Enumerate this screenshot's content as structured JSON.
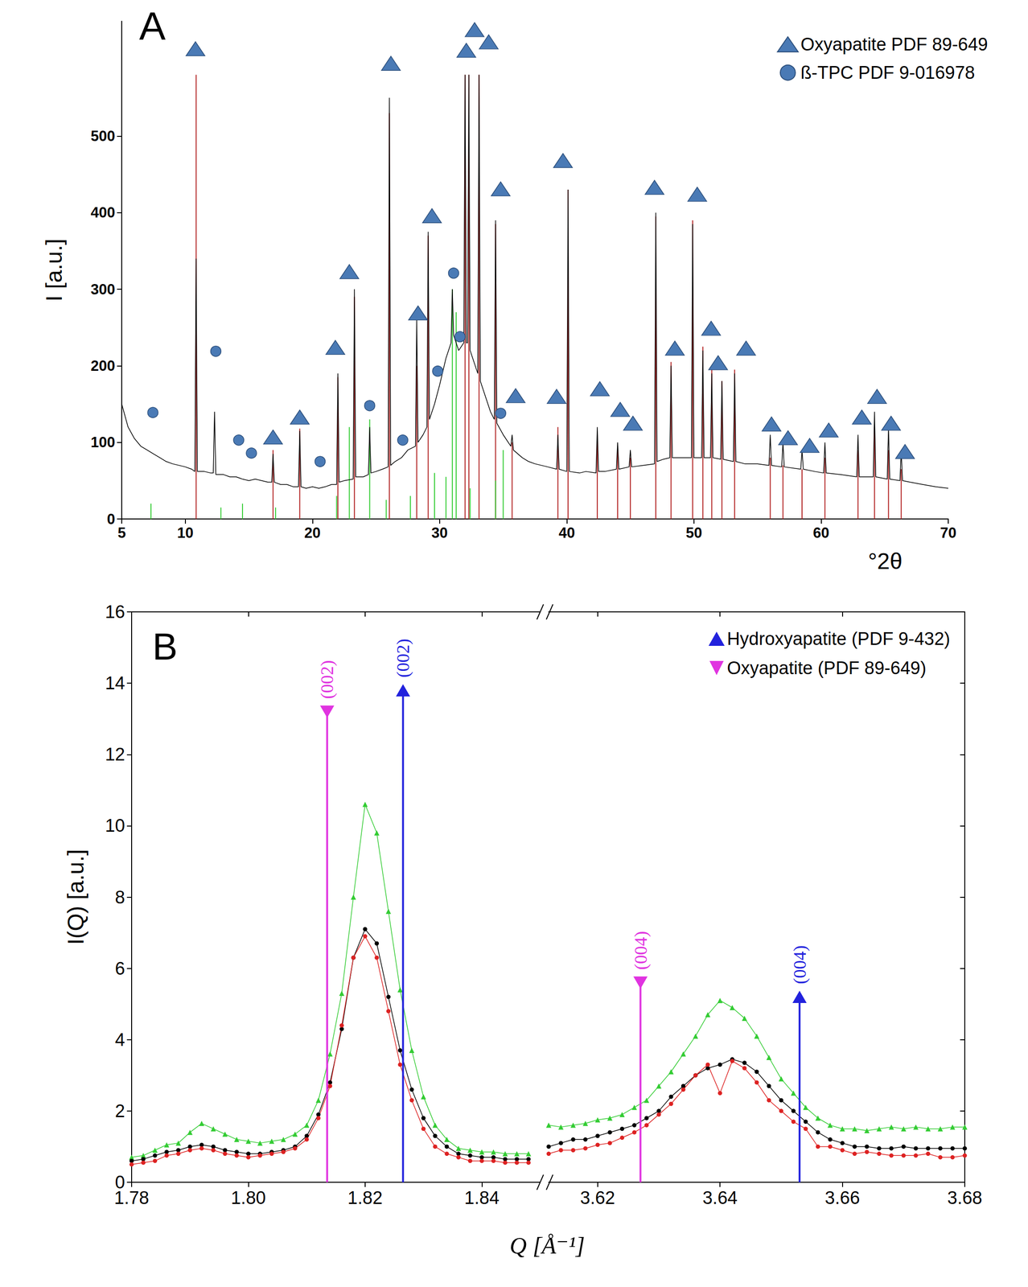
{
  "chart_data": [
    {
      "type": "line",
      "title": "A",
      "x_label": "°2θ",
      "y_label": "I [a.u.]",
      "xlim": [
        5,
        70
      ],
      "xticks": [
        5,
        10,
        20,
        30,
        40,
        50,
        60,
        70
      ],
      "ylim": [
        0,
        650
      ],
      "yticks": [
        0,
        100,
        200,
        300,
        400,
        500
      ],
      "grid": false,
      "legend": "top-right",
      "series": [
        {
          "type": "line",
          "color": "#000000",
          "x": [
            5.0,
            5.5,
            6.0,
            6.5,
            7.0,
            7.5,
            8.0,
            8.5,
            9.0,
            9.5,
            10.0,
            10.5,
            10.75,
            10.85,
            10.95,
            11.5,
            12.0,
            12.2,
            12.3,
            12.4,
            13.0,
            13.5,
            14.0,
            14.5,
            15.0,
            15.5,
            16.0,
            16.5,
            16.8,
            16.9,
            17.0,
            17.5,
            18.0,
            18.5,
            18.9,
            19.0,
            19.1,
            19.5,
            20.0,
            20.5,
            21.0,
            21.5,
            21.9,
            22.0,
            22.1,
            22.5,
            23.2,
            23.3,
            23.4,
            24.0,
            24.4,
            24.5,
            24.6,
            25.0,
            25.5,
            25.95,
            26.05,
            26.15,
            26.5,
            27.0,
            27.5,
            28.1,
            28.2,
            28.3,
            28.7,
            29.0,
            29.1,
            29.2,
            29.6,
            30.0,
            30.5,
            30.9,
            31.0,
            31.1,
            31.5,
            31.9,
            32.0,
            32.1,
            32.2,
            32.3,
            32.4,
            32.8,
            33.0,
            33.1,
            33.2,
            33.6,
            34.0,
            34.3,
            34.4,
            34.5,
            35.0,
            35.6,
            35.7,
            35.8,
            36.5,
            37.0,
            37.5,
            38.0,
            38.5,
            39.2,
            39.3,
            39.4,
            40.0,
            40.1,
            40.2,
            41.0,
            41.5,
            42.3,
            42.4,
            42.5,
            43.0,
            43.9,
            44.0,
            44.1,
            44.9,
            45.0,
            45.1,
            46.0,
            46.9,
            47.0,
            47.1,
            47.6,
            48.1,
            48.2,
            48.3,
            49.0,
            49.8,
            49.9,
            50.0,
            50.6,
            50.7,
            50.8,
            51.3,
            51.4,
            51.5,
            52.1,
            52.2,
            52.3,
            53.1,
            53.2,
            53.3,
            54.0,
            55.0,
            55.9,
            56.0,
            56.1,
            56.9,
            57.0,
            57.1,
            58.4,
            58.5,
            58.6,
            59.5,
            60.2,
            60.3,
            60.4,
            61.5,
            62.8,
            62.9,
            63.0,
            64.1,
            64.2,
            64.3,
            65.2,
            65.3,
            65.4,
            66.2,
            66.3,
            66.4,
            67.0,
            68.0,
            69.0,
            70.0
          ],
          "values": [
            150,
            120,
            105,
            95,
            90,
            85,
            80,
            75,
            72,
            70,
            68,
            65,
            62,
            340,
            62,
            62,
            60,
            60,
            140,
            58,
            58,
            55,
            55,
            52,
            50,
            52,
            50,
            48,
            48,
            85,
            48,
            45,
            45,
            42,
            42,
            115,
            42,
            40,
            42,
            40,
            42,
            45,
            45,
            190,
            48,
            50,
            52,
            300,
            55,
            55,
            58,
            120,
            60,
            62,
            65,
            68,
            550,
            70,
            75,
            80,
            90,
            95,
            260,
            100,
            110,
            120,
            375,
            130,
            150,
            175,
            210,
            230,
            300,
            240,
            220,
            230,
            580,
            230,
            230,
            580,
            220,
            200,
            190,
            580,
            180,
            160,
            140,
            130,
            390,
            125,
            110,
            95,
            110,
            90,
            80,
            75,
            72,
            70,
            68,
            65,
            110,
            65,
            62,
            430,
            62,
            60,
            62,
            60,
            120,
            62,
            62,
            65,
            100,
            65,
            68,
            90,
            68,
            70,
            72,
            400,
            75,
            78,
            80,
            200,
            80,
            80,
            80,
            385,
            80,
            80,
            220,
            80,
            80,
            190,
            80,
            78,
            180,
            78,
            75,
            190,
            75,
            72,
            72,
            70,
            110,
            70,
            68,
            100,
            68,
            65,
            90,
            65,
            62,
            60,
            100,
            60,
            58,
            55,
            110,
            55,
            55,
            140,
            55,
            52,
            120,
            52,
            50,
            90,
            50,
            48,
            45,
            42,
            40
          ]
        },
        {
          "type": "stick",
          "color": "#b22222",
          "x": [
            10.85,
            16.9,
            19.0,
            22.0,
            23.3,
            26.05,
            28.2,
            29.1,
            32.0,
            32.3,
            33.1,
            34.4,
            35.7,
            39.3,
            40.1,
            42.4,
            44.0,
            45.0,
            47.0,
            48.2,
            49.9,
            50.7,
            51.4,
            52.2,
            53.2,
            56.0,
            57.0,
            58.5,
            60.3,
            62.9,
            64.2,
            65.3,
            66.3
          ],
          "values": [
            580,
            90,
            118,
            185,
            290,
            530,
            200,
            370,
            580,
            580,
            580,
            385,
            100,
            120,
            430,
            110,
            90,
            80,
            395,
            205,
            390,
            225,
            195,
            180,
            195,
            80,
            70,
            65,
            80,
            90,
            120,
            90,
            65
          ]
        },
        {
          "type": "stick",
          "color": "#33cc33",
          "x": [
            7.3,
            12.8,
            14.5,
            17.1,
            21.9,
            22.9,
            24.5,
            25.8,
            27.7,
            29.6,
            30.5,
            31.0,
            31.3,
            32.4,
            34.4,
            35.0
          ],
          "values": [
            20,
            15,
            20,
            15,
            30,
            120,
            130,
            25,
            30,
            60,
            55,
            300,
            270,
            40,
            50,
            90
          ]
        },
        {
          "type": "scatter",
          "name": "Oxyapatite PDF 89-649",
          "color": "#4a7ab5",
          "marker": "triangle",
          "x": [
            10.8,
            16.9,
            19.0,
            21.8,
            22.9,
            26.17,
            28.3,
            29.4,
            32.1,
            32.75,
            33.86,
            34.8,
            35.98,
            39.2,
            39.7,
            42.6,
            44.2,
            45.2,
            46.9,
            48.5,
            50.26,
            51.35,
            51.9,
            54.1,
            56.1,
            57.4,
            59.1,
            60.6,
            63.2,
            64.4,
            65.5,
            66.6
          ],
          "values": [
            614,
            107,
            133,
            224,
            323,
            595,
            269,
            396,
            612,
            639,
            623,
            431,
            161,
            160,
            468,
            170,
            143,
            125,
            433,
            223,
            424,
            249,
            204,
            223,
            124,
            106,
            96,
            116,
            133,
            160,
            125,
            88
          ]
        },
        {
          "type": "scatter",
          "name": "ß-TPC PDF 9-016978",
          "color": "#4a7ab5",
          "marker": "circle",
          "x": [
            7.45,
            12.4,
            14.2,
            15.2,
            20.6,
            24.5,
            27.1,
            29.85,
            31.1,
            31.6,
            34.8
          ],
          "values": [
            139,
            219,
            103,
            86,
            75,
            148,
            103,
            193,
            321,
            238,
            138
          ]
        }
      ]
    },
    {
      "type": "line",
      "title": "B",
      "x_label": "Q [Å⁻¹]",
      "y_label": "I(Q) [a.u.]",
      "ylim": [
        0,
        16
      ],
      "yticks": [
        0,
        2,
        4,
        6,
        8,
        10,
        12,
        14,
        16
      ],
      "grid": false,
      "legend": "top-right",
      "segments": [
        {
          "xlim": [
            1.78,
            1.85
          ],
          "xticks": [
            1.78,
            {
              "value": 1.8,
              "label": "1.80"
            },
            1.82,
            1.84
          ],
          "x": [
            1.78,
            1.782,
            1.784,
            1.786,
            1.788,
            1.79,
            1.792,
            1.794,
            1.796,
            1.798,
            1.8,
            1.802,
            1.804,
            1.806,
            1.808,
            1.81,
            1.812,
            1.814,
            1.816,
            1.818,
            1.82,
            1.822,
            1.824,
            1.826,
            1.828,
            1.83,
            1.832,
            1.834,
            1.836,
            1.838,
            1.84,
            1.842,
            1.844,
            1.846,
            1.848
          ],
          "series": [
            {
              "color": "#33cc33",
              "marker": "triangle",
              "values": [
                0.7,
                0.75,
                0.9,
                1.05,
                1.1,
                1.4,
                1.65,
                1.5,
                1.35,
                1.2,
                1.15,
                1.1,
                1.15,
                1.2,
                1.35,
                1.6,
                2.3,
                3.6,
                5.3,
                8.0,
                10.6,
                9.8,
                7.6,
                5.4,
                3.7,
                2.4,
                1.6,
                1.2,
                0.95,
                0.9,
                0.85,
                0.85,
                0.8,
                0.8,
                0.8
              ]
            },
            {
              "color": "#000000",
              "marker": "circle",
              "values": [
                0.6,
                0.65,
                0.75,
                0.85,
                0.9,
                1.0,
                1.05,
                1.0,
                0.9,
                0.85,
                0.8,
                0.8,
                0.85,
                0.9,
                1.0,
                1.3,
                1.9,
                2.8,
                4.3,
                6.3,
                7.1,
                6.7,
                5.2,
                3.7,
                2.6,
                1.8,
                1.3,
                1.0,
                0.8,
                0.75,
                0.7,
                0.7,
                0.65,
                0.65,
                0.65
              ]
            },
            {
              "color": "#dd2222",
              "marker": "circle",
              "values": [
                0.5,
                0.55,
                0.6,
                0.75,
                0.8,
                0.9,
                0.95,
                0.9,
                0.8,
                0.75,
                0.7,
                0.75,
                0.8,
                0.85,
                0.95,
                1.2,
                1.8,
                2.7,
                4.4,
                6.3,
                6.9,
                6.3,
                4.8,
                3.3,
                2.3,
                1.5,
                1.0,
                0.8,
                0.7,
                0.6,
                0.6,
                0.6,
                0.55,
                0.55,
                0.55
              ]
            }
          ]
        },
        {
          "xlim": [
            3.612,
            3.68
          ],
          "xticks": [
            3.62,
            3.64,
            3.66,
            3.68
          ],
          "x": [
            3.612,
            3.614,
            3.616,
            3.618,
            3.62,
            3.622,
            3.624,
            3.626,
            3.628,
            3.63,
            3.632,
            3.634,
            3.636,
            3.638,
            3.64,
            3.642,
            3.644,
            3.646,
            3.648,
            3.65,
            3.652,
            3.654,
            3.656,
            3.658,
            3.66,
            3.662,
            3.664,
            3.666,
            3.668,
            3.67,
            3.672,
            3.674,
            3.676,
            3.678,
            3.68
          ],
          "series": [
            {
              "color": "#33cc33",
              "marker": "triangle",
              "values": [
                1.6,
                1.55,
                1.6,
                1.65,
                1.75,
                1.8,
                1.9,
                2.1,
                2.3,
                2.7,
                3.1,
                3.6,
                4.1,
                4.7,
                5.1,
                4.9,
                4.6,
                4.1,
                3.5,
                2.9,
                2.5,
                2.1,
                1.8,
                1.6,
                1.5,
                1.5,
                1.45,
                1.5,
                1.55,
                1.5,
                1.55,
                1.5,
                1.5,
                1.55,
                1.55
              ]
            },
            {
              "color": "#000000",
              "marker": "circle",
              "values": [
                1.0,
                1.1,
                1.2,
                1.2,
                1.3,
                1.4,
                1.5,
                1.6,
                1.8,
                2.0,
                2.4,
                2.7,
                3.0,
                3.2,
                3.3,
                3.45,
                3.35,
                3.1,
                2.7,
                2.3,
                2.0,
                1.7,
                1.4,
                1.2,
                1.1,
                1.0,
                1.0,
                0.95,
                0.95,
                1.0,
                0.95,
                0.95,
                0.95,
                0.95,
                0.95
              ]
            },
            {
              "color": "#dd2222",
              "marker": "circle",
              "values": [
                0.8,
                0.9,
                0.9,
                0.95,
                1.05,
                1.1,
                1.25,
                1.4,
                1.6,
                1.9,
                2.2,
                2.6,
                3.0,
                3.3,
                2.5,
                3.4,
                3.2,
                2.8,
                2.3,
                2.0,
                1.7,
                1.5,
                1.0,
                1.0,
                0.9,
                0.8,
                0.85,
                0.8,
                0.75,
                0.75,
                0.75,
                0.8,
                0.7,
                0.7,
                0.75
              ]
            }
          ]
        }
      ],
      "references": [
        {
          "name": "Hydroxyapatite (PDF 9-432)",
          "color": "#2222dd",
          "marker": "triangle",
          "x": [
            1.8265,
            3.653
          ],
          "values": [
            13.8,
            5.2
          ],
          "labels": [
            "(002)",
            "(004)"
          ]
        },
        {
          "name": "Oxyapatite (PDF 89-649)",
          "color": "#e033e0",
          "marker": "triangle-down",
          "x": [
            1.8135,
            3.627
          ],
          "values": [
            13.2,
            5.6
          ],
          "labels": [
            "(002)",
            "(004)"
          ]
        }
      ]
    }
  ]
}
